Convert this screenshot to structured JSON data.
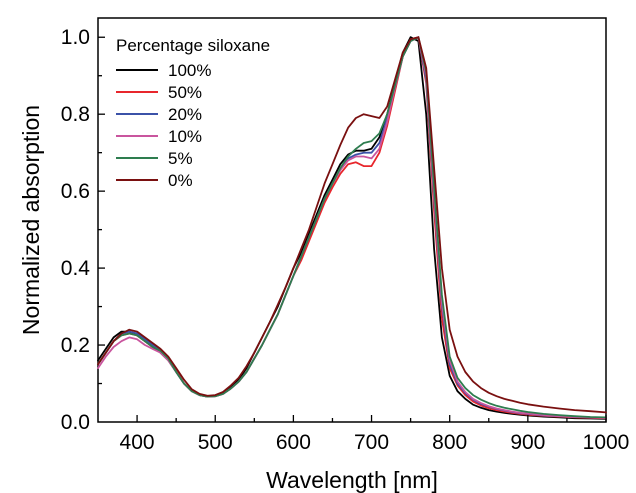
{
  "chart_data": {
    "type": "line",
    "title": "",
    "xlabel": "Wavelength [nm]",
    "ylabel": "Normalized absorption",
    "xlim": [
      350,
      1000
    ],
    "ylim": [
      0.0,
      1.05
    ],
    "x_ticks": [
      400,
      500,
      600,
      700,
      800,
      900,
      1000
    ],
    "x_tick_labels": [
      "400",
      "500",
      "600",
      "700",
      "800",
      "900",
      "1000"
    ],
    "y_ticks": [
      0.0,
      0.2,
      0.4,
      0.6,
      0.8,
      1.0
    ],
    "y_tick_labels": [
      "0.0",
      "0.2",
      "0.4",
      "0.6",
      "0.8",
      "1.0"
    ],
    "grid": false,
    "legend": {
      "title": "Percentage siloxane",
      "placement": "top-left"
    },
    "x": [
      350,
      360,
      370,
      380,
      390,
      400,
      410,
      420,
      430,
      440,
      450,
      460,
      470,
      480,
      490,
      500,
      510,
      520,
      530,
      540,
      550,
      560,
      570,
      580,
      590,
      600,
      610,
      620,
      630,
      640,
      650,
      660,
      670,
      680,
      690,
      700,
      710,
      720,
      730,
      740,
      750,
      760,
      770,
      780,
      790,
      800,
      810,
      820,
      830,
      840,
      850,
      860,
      870,
      880,
      890,
      900,
      920,
      940,
      960,
      980,
      1000
    ],
    "series": [
      {
        "name": "100%",
        "color": "#000000",
        "values": [
          0.16,
          0.19,
          0.22,
          0.235,
          0.235,
          0.225,
          0.21,
          0.195,
          0.18,
          0.16,
          0.13,
          0.1,
          0.08,
          0.07,
          0.066,
          0.068,
          0.075,
          0.09,
          0.11,
          0.14,
          0.18,
          0.22,
          0.26,
          0.3,
          0.35,
          0.4,
          0.44,
          0.49,
          0.54,
          0.59,
          0.63,
          0.67,
          0.695,
          0.705,
          0.705,
          0.71,
          0.74,
          0.8,
          0.88,
          0.96,
          1.0,
          0.99,
          0.8,
          0.45,
          0.22,
          0.12,
          0.08,
          0.06,
          0.045,
          0.037,
          0.031,
          0.027,
          0.024,
          0.021,
          0.019,
          0.017,
          0.014,
          0.012,
          0.01,
          0.009,
          0.008
        ]
      },
      {
        "name": "50%",
        "color": "#e8262c",
        "values": [
          0.15,
          0.18,
          0.21,
          0.225,
          0.23,
          0.225,
          0.21,
          0.195,
          0.185,
          0.165,
          0.135,
          0.1,
          0.08,
          0.07,
          0.066,
          0.067,
          0.073,
          0.087,
          0.105,
          0.13,
          0.165,
          0.2,
          0.24,
          0.28,
          0.33,
          0.38,
          0.42,
          0.47,
          0.52,
          0.57,
          0.61,
          0.645,
          0.67,
          0.675,
          0.665,
          0.665,
          0.7,
          0.77,
          0.86,
          0.95,
          0.995,
          1.0,
          0.88,
          0.55,
          0.27,
          0.14,
          0.095,
          0.07,
          0.053,
          0.043,
          0.036,
          0.031,
          0.027,
          0.024,
          0.021,
          0.019,
          0.016,
          0.014,
          0.012,
          0.011,
          0.01
        ]
      },
      {
        "name": "20%",
        "color": "#3b52a8",
        "values": [
          0.15,
          0.18,
          0.21,
          0.23,
          0.235,
          0.23,
          0.215,
          0.2,
          0.185,
          0.165,
          0.13,
          0.1,
          0.08,
          0.07,
          0.066,
          0.067,
          0.073,
          0.087,
          0.105,
          0.13,
          0.165,
          0.2,
          0.24,
          0.28,
          0.33,
          0.38,
          0.43,
          0.48,
          0.53,
          0.58,
          0.62,
          0.655,
          0.685,
          0.695,
          0.7,
          0.7,
          0.725,
          0.79,
          0.87,
          0.95,
          0.99,
          1.0,
          0.89,
          0.58,
          0.3,
          0.15,
          0.1,
          0.075,
          0.058,
          0.047,
          0.04,
          0.034,
          0.03,
          0.026,
          0.023,
          0.021,
          0.017,
          0.015,
          0.013,
          0.012,
          0.011
        ]
      },
      {
        "name": "10%",
        "color": "#c9559e",
        "values": [
          0.14,
          0.17,
          0.195,
          0.21,
          0.22,
          0.215,
          0.2,
          0.19,
          0.18,
          0.16,
          0.13,
          0.1,
          0.08,
          0.07,
          0.066,
          0.067,
          0.073,
          0.087,
          0.105,
          0.13,
          0.165,
          0.2,
          0.24,
          0.28,
          0.33,
          0.38,
          0.43,
          0.48,
          0.53,
          0.58,
          0.62,
          0.655,
          0.68,
          0.69,
          0.69,
          0.685,
          0.71,
          0.78,
          0.87,
          0.95,
          0.99,
          1.0,
          0.9,
          0.59,
          0.31,
          0.16,
          0.105,
          0.078,
          0.06,
          0.049,
          0.041,
          0.035,
          0.031,
          0.027,
          0.024,
          0.022,
          0.018,
          0.015,
          0.013,
          0.012,
          0.011
        ]
      },
      {
        "name": "5%",
        "color": "#2e7d4f",
        "values": [
          0.15,
          0.18,
          0.21,
          0.225,
          0.23,
          0.225,
          0.21,
          0.195,
          0.185,
          0.165,
          0.13,
          0.1,
          0.08,
          0.07,
          0.066,
          0.067,
          0.073,
          0.087,
          0.105,
          0.13,
          0.165,
          0.2,
          0.24,
          0.28,
          0.33,
          0.38,
          0.43,
          0.48,
          0.53,
          0.58,
          0.62,
          0.66,
          0.69,
          0.71,
          0.725,
          0.73,
          0.75,
          0.8,
          0.875,
          0.95,
          0.99,
          1.0,
          0.91,
          0.61,
          0.33,
          0.17,
          0.115,
          0.088,
          0.07,
          0.058,
          0.049,
          0.042,
          0.037,
          0.033,
          0.029,
          0.026,
          0.021,
          0.018,
          0.015,
          0.013,
          0.012
        ]
      },
      {
        "name": "0%",
        "color": "#7a1010",
        "values": [
          0.15,
          0.18,
          0.21,
          0.23,
          0.24,
          0.235,
          0.22,
          0.205,
          0.19,
          0.17,
          0.14,
          0.11,
          0.085,
          0.073,
          0.068,
          0.07,
          0.078,
          0.095,
          0.115,
          0.145,
          0.18,
          0.22,
          0.26,
          0.305,
          0.35,
          0.4,
          0.45,
          0.5,
          0.56,
          0.62,
          0.67,
          0.72,
          0.765,
          0.79,
          0.8,
          0.795,
          0.79,
          0.82,
          0.89,
          0.96,
          0.995,
          1.0,
          0.92,
          0.66,
          0.4,
          0.24,
          0.17,
          0.13,
          0.105,
          0.088,
          0.076,
          0.067,
          0.06,
          0.055,
          0.05,
          0.046,
          0.04,
          0.035,
          0.031,
          0.028,
          0.025
        ]
      }
    ]
  }
}
